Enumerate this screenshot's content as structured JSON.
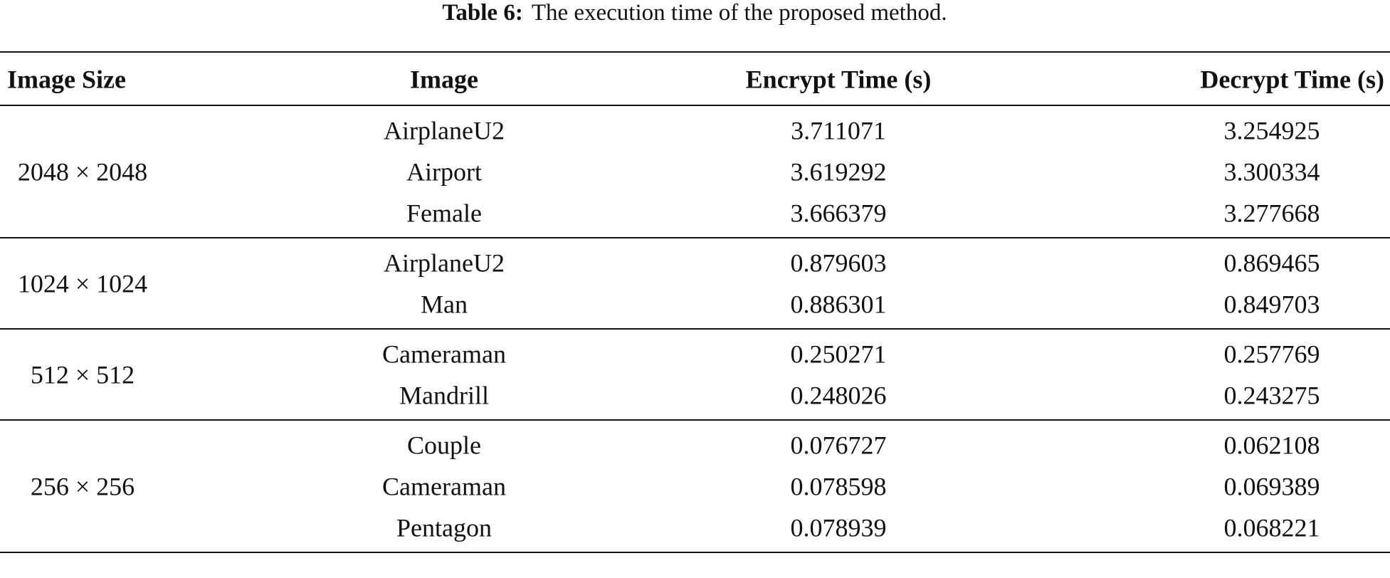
{
  "table": {
    "caption_label": "Table 6:",
    "caption_text": "The execution time of the proposed method.",
    "header": [
      "Image Size",
      "Image",
      "Encrypt Time (s)",
      "Decrypt Time (s)"
    ],
    "groups": [
      {
        "size": "2048 × 2048",
        "rows": [
          [
            "AirplaneU2",
            "3.711071",
            "3.254925"
          ],
          [
            "Airport",
            "3.619292",
            "3.300334"
          ],
          [
            "Female",
            "3.666379",
            "3.277668"
          ]
        ]
      },
      {
        "size": "1024 × 1024",
        "rows": [
          [
            "AirplaneU2",
            "0.879603",
            "0.869465"
          ],
          [
            "Man",
            "0.886301",
            "0.849703"
          ]
        ]
      },
      {
        "size": "512 × 512",
        "rows": [
          [
            "Cameraman",
            "0.250271",
            "0.257769"
          ],
          [
            "Mandrill",
            "0.248026",
            "0.243275"
          ]
        ]
      },
      {
        "size": "256 × 256",
        "rows": [
          [
            "Couple",
            "0.076727",
            "0.062108"
          ],
          [
            "Cameraman",
            "0.078598",
            "0.069389"
          ],
          [
            "Pentagon",
            "0.078939",
            "0.068221"
          ]
        ]
      }
    ]
  }
}
